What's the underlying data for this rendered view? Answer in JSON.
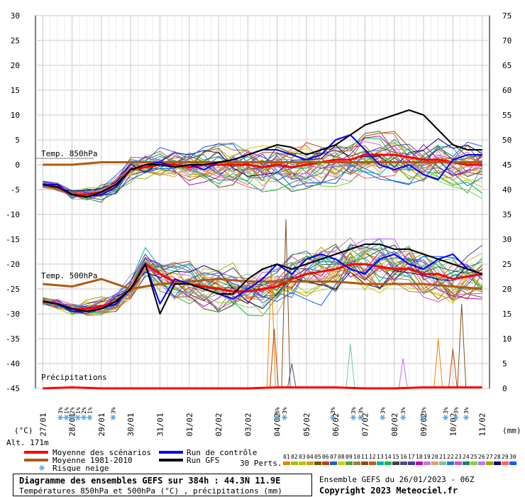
{
  "chart_data": {
    "type": "line",
    "left_axis": {
      "range": [
        -45,
        30
      ],
      "ticks": [
        30,
        25,
        20,
        15,
        10,
        5,
        0,
        -5,
        -10,
        -15,
        -20,
        -25,
        -30,
        -35,
        -40,
        -45
      ],
      "unit": "(°C)"
    },
    "right_axis": {
      "range": [
        0,
        75
      ],
      "ticks": [
        75,
        70,
        65,
        60,
        55,
        50,
        45,
        40,
        35,
        30,
        25,
        20,
        15,
        10,
        5,
        0
      ],
      "unit": "(mm)"
    },
    "date_labels": [
      "27/01",
      "28/01",
      "29/01",
      "30/01",
      "31/01",
      "01/02",
      "02/02",
      "03/02",
      "04/02",
      "05/02",
      "06/02",
      "07/02",
      "08/02",
      "09/02",
      "10/02",
      "11/02"
    ],
    "panel_labels": {
      "t850": "Temp. 850hPa",
      "t500": "Temp. 500hPa",
      "precip": "Précipitations"
    },
    "altitude": "Alt. 171m",
    "snow_risk": [
      {
        "x": 0.6,
        "labels": [
          "3%"
        ]
      },
      {
        "x": 0.8,
        "labels": [
          "1%"
        ]
      },
      {
        "x": 1.0,
        "labels": [
          "2%"
        ]
      },
      {
        "x": 1.2,
        "labels": [
          "1%"
        ]
      },
      {
        "x": 1.4,
        "labels": [
          "2%"
        ]
      },
      {
        "x": 1.6,
        "labels": [
          "1%"
        ]
      },
      {
        "x": 2.4,
        "labels": [
          "3%"
        ]
      },
      {
        "x": 8.0,
        "labels": [
          "6%"
        ]
      },
      {
        "x": 8.25,
        "labels": [
          "3%"
        ]
      },
      {
        "x": 9.9,
        "labels": [
          "3%"
        ]
      },
      {
        "x": 10.6,
        "labels": [
          "3%"
        ]
      },
      {
        "x": 10.85,
        "labels": [
          "3%"
        ]
      },
      {
        "x": 11.6,
        "labels": [
          "3%"
        ]
      },
      {
        "x": 12.3,
        "labels": [
          "3%"
        ]
      },
      {
        "x": 13.0,
        "labels": [
          "3%"
        ]
      },
      {
        "x": 13.75,
        "labels": [
          "3%"
        ]
      },
      {
        "x": 14.1,
        "labels": [
          "3%"
        ]
      },
      {
        "x": 14.45,
        "labels": [
          "3%"
        ]
      }
    ],
    "series": [
      {
        "name": "Moyenne des scénarios",
        "color": "#ff0000",
        "panel": "t850",
        "x": [
          0,
          0.5,
          1,
          1.5,
          2,
          2.5,
          3,
          3.5,
          4,
          4.5,
          5,
          5.5,
          6,
          6.5,
          7,
          7.5,
          8,
          8.5,
          9,
          9.5,
          10,
          10.5,
          11,
          11.5,
          12,
          12.5,
          13,
          13.5,
          14,
          14.5,
          15
        ],
        "values": [
          -4,
          -4.5,
          -6,
          -6,
          -5.5,
          -4,
          -1,
          -0.5,
          0,
          0,
          -0.5,
          0,
          0,
          0,
          0,
          -0.5,
          0,
          -0.5,
          0,
          0.5,
          1,
          1,
          2,
          2,
          2,
          1.5,
          1,
          1,
          0.5,
          0,
          0
        ]
      },
      {
        "name": "Moyenne 1981-2010",
        "color": "#b05a10",
        "panel": "t850",
        "x": [
          0,
          1,
          2,
          3,
          4,
          5,
          6,
          7,
          8,
          9,
          10,
          11,
          12,
          13,
          14,
          15
        ],
        "values": [
          0,
          0,
          0.5,
          0.5,
          0.5,
          0.5,
          0.5,
          0.5,
          0.5,
          0.5,
          0.5,
          0.5,
          0.5,
          0.5,
          0.5,
          0.5
        ]
      },
      {
        "name": "Run de contrôle",
        "color": "#0000ff",
        "panel": "t850",
        "x": [
          0,
          0.5,
          1,
          1.5,
          2,
          2.5,
          3,
          3.5,
          4,
          4.5,
          5,
          5.5,
          6,
          6.5,
          7,
          7.5,
          8,
          8.5,
          9,
          9.5,
          10,
          10.5,
          11,
          11.5,
          12,
          12.5,
          13,
          13.5,
          14,
          14.5,
          15
        ],
        "values": [
          -4,
          -4,
          -6,
          -6.5,
          -6,
          -4.5,
          -1,
          0,
          0.5,
          -0.5,
          0,
          -1,
          0.5,
          1,
          2,
          3,
          3,
          2,
          1,
          2,
          5,
          6,
          3,
          0,
          -1,
          0,
          -2,
          -3,
          1,
          2,
          2
        ]
      },
      {
        "name": "Run GFS",
        "color": "#000000",
        "panel": "t850",
        "x": [
          0,
          0.5,
          1,
          1.5,
          2,
          2.5,
          3,
          3.5,
          4,
          4.5,
          5,
          5.5,
          6,
          6.5,
          7,
          7.5,
          8,
          8.5,
          9,
          9.5,
          10,
          10.5,
          11,
          11.5,
          12,
          12.5,
          13,
          13.5,
          14,
          14.5,
          15
        ],
        "values": [
          -4,
          -4.5,
          -6,
          -6.5,
          -5.5,
          -4,
          -1,
          0,
          0,
          -0.5,
          0,
          0,
          0.5,
          1,
          2,
          3,
          4,
          3.5,
          2,
          3,
          4,
          6,
          8,
          9,
          10,
          11,
          10,
          7,
          4,
          3,
          3
        ]
      },
      {
        "name": "Moyenne des scénarios",
        "color": "#ff0000",
        "panel": "t500",
        "x": [
          0,
          0.5,
          1,
          1.5,
          2,
          2.5,
          3,
          3.5,
          4,
          4.5,
          5,
          5.5,
          6,
          6.5,
          7,
          7.5,
          8,
          8.5,
          9,
          9.5,
          10,
          10.5,
          11,
          11.5,
          12,
          12.5,
          13,
          13.5,
          14,
          14.5,
          15
        ],
        "values": [
          -27.5,
          -28,
          -29,
          -29,
          -28.5,
          -27.5,
          -25,
          -20,
          -22,
          -23.5,
          -24,
          -24.5,
          -25,
          -25.5,
          -25.5,
          -25,
          -24.5,
          -23,
          -22,
          -21.5,
          -21,
          -20,
          -20,
          -20.5,
          -21,
          -21,
          -22,
          -22,
          -23,
          -22.5,
          -22
        ]
      },
      {
        "name": "Moyenne 1981-2010",
        "color": "#b05a10",
        "panel": "t500",
        "x": [
          0,
          1,
          2,
          3,
          4,
          5,
          6,
          7,
          8,
          9,
          10,
          11,
          12,
          13,
          14,
          15
        ],
        "values": [
          -24,
          -24.5,
          -23,
          -25,
          -24,
          -23.5,
          -23,
          -23.5,
          -23.5,
          -23.5,
          -23.5,
          -24,
          -24,
          -24,
          -24.5,
          -25
        ]
      },
      {
        "name": "Run de contrôle",
        "color": "#0000ff",
        "panel": "t500",
        "x": [
          0,
          0.5,
          1,
          1.5,
          2,
          2.5,
          3,
          3.5,
          4,
          4.5,
          5,
          5.5,
          6,
          6.5,
          7,
          7.5,
          8,
          8.5,
          9,
          9.5,
          10,
          10.5,
          11,
          11.5,
          12,
          12.5,
          13,
          13.5,
          14,
          14.5,
          15
        ],
        "values": [
          -27.5,
          -28,
          -29.5,
          -29.5,
          -29,
          -28,
          -25,
          -20,
          -28,
          -23,
          -24,
          -25,
          -26,
          -27,
          -25,
          -23,
          -20,
          -22,
          -19,
          -18,
          -19,
          -21,
          -22,
          -19,
          -18,
          -20,
          -21,
          -19,
          -18,
          -21,
          -22
        ]
      },
      {
        "name": "Run GFS",
        "color": "#000000",
        "panel": "t500",
        "x": [
          0,
          0.5,
          1,
          1.5,
          2,
          2.5,
          3,
          3.5,
          4,
          4.5,
          5,
          5.5,
          6,
          6.5,
          7,
          7.5,
          8,
          8.5,
          9,
          9.5,
          10,
          10.5,
          11,
          11.5,
          12,
          12.5,
          13,
          13.5,
          14,
          14.5,
          15
        ],
        "values": [
          -27.5,
          -28,
          -29,
          -29.5,
          -29,
          -27.5,
          -25,
          -20,
          -30,
          -24,
          -24,
          -25,
          -26,
          -26,
          -23,
          -21,
          -20,
          -21,
          -20,
          -19,
          -18,
          -17,
          -16,
          -16,
          -17,
          -17,
          -18,
          -19,
          -20,
          -21,
          -22
        ]
      },
      {
        "name": "Moyenne des scénarios",
        "color": "#ff0000",
        "panel": "precip",
        "x": [
          0,
          1,
          2,
          3,
          4,
          5,
          6,
          7,
          8,
          9,
          10,
          11,
          12,
          13,
          14,
          15
        ],
        "values": [
          0,
          0.2,
          0,
          0,
          0,
          0,
          0,
          0,
          0.2,
          0.2,
          0.2,
          0,
          0,
          0.2,
          0.2,
          0.2
        ]
      }
    ],
    "legend": [
      {
        "label": "Moyenne des scénarios",
        "color": "#ff0000"
      },
      {
        "label": "Moyenne 1981-2010",
        "color": "#b05a10"
      },
      {
        "label": "Risque neige",
        "color": "#5aa6e6"
      },
      {
        "label": "Run de contrôle",
        "color": "#0000ff"
      },
      {
        "label": "Run GFS",
        "color": "#000000"
      }
    ],
    "perts_label": "30 Perts.",
    "perts": [
      "01",
      "02",
      "03",
      "04",
      "05",
      "06",
      "07",
      "08",
      "09",
      "10",
      "11",
      "12",
      "13",
      "14",
      "15",
      "16",
      "17",
      "18",
      "19",
      "20",
      "21",
      "22",
      "23",
      "24",
      "25",
      "26",
      "27",
      "28",
      "29",
      "30"
    ],
    "pert_colors": [
      "#f08000",
      "#a0c000",
      "#c0c000",
      "#d0a000",
      "#6a5a00",
      "#c04000",
      "#2060c0",
      "#d0d000",
      "#50a050",
      "#a08040",
      "#805020",
      "#c06000",
      "#00b0b0",
      "#00c040",
      "#404040",
      "#505080",
      "#404090",
      "#c000c0",
      "#c080c0",
      "#e0a060",
      "#80c0a0",
      "#3070d0",
      "#d050d0",
      "#208060",
      "#80d040",
      "#c070ff",
      "#a0a000",
      "#000080",
      "#ff6060",
      "#0060ff"
    ]
  },
  "footer": {
    "title": "Diagramme des ensembles GEFS sur 384h : 44.3N 11.9E",
    "subtitle": "Températures 850hPa et 500hPa (°C) , précipitations (mm)",
    "run": "Ensemble GEFS du 26/01/2023 - 06Z",
    "copyright": "Copyright 2023 Meteociel.fr"
  }
}
